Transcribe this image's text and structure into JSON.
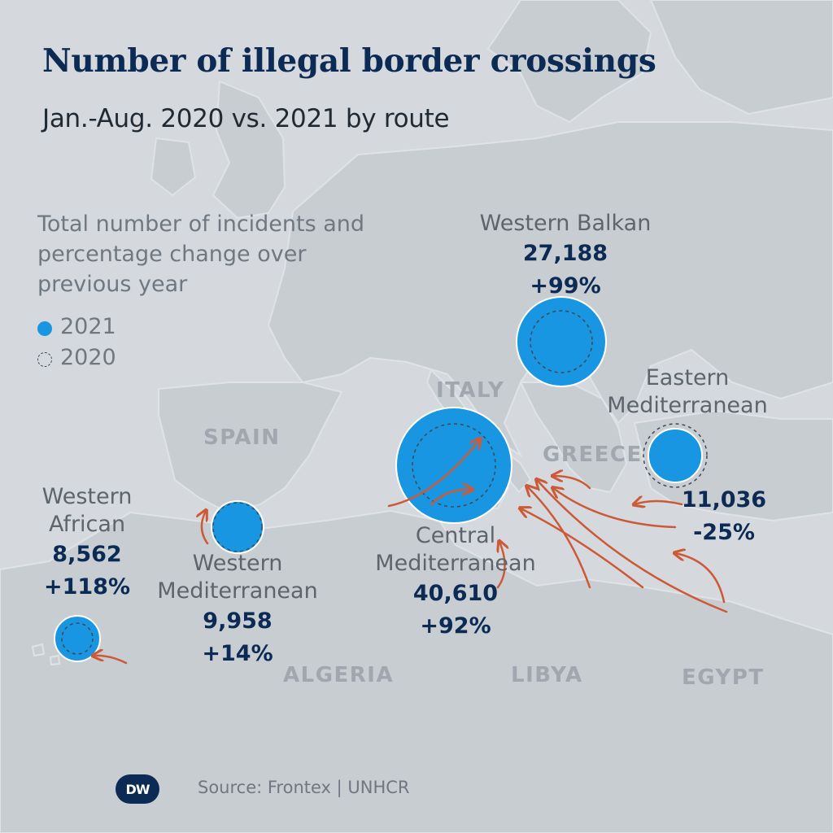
{
  "header": {
    "title": "Number of illegal border crossings",
    "subtitle": "Jan.-Aug. 2020 vs. 2021 by route"
  },
  "legend": {
    "description": "Total number of incidents and percentage change over previous year",
    "item_2021": "2021",
    "item_2020": "2020",
    "color_2021": "#1996e1",
    "style_2020": "dashed circle outline"
  },
  "countries": {
    "italy": "ITALY",
    "spain": "SPAIN",
    "greece": "GREECE",
    "algeria": "ALGERIA",
    "libya": "LIBYA",
    "egypt": "EGYPT"
  },
  "routes": {
    "western_balkan": {
      "name": "Western Balkan",
      "count_2021": 27188,
      "value": "27,188",
      "change": "+99%"
    },
    "eastern_mediterranean": {
      "name_line1": "Eastern",
      "name_line2": "Mediterranean",
      "count_2021": 11036,
      "value": "11,036",
      "change": "-25%"
    },
    "central_mediterranean": {
      "name_line1": "Central",
      "name_line2": "Mediterranean",
      "count_2021": 40610,
      "value": "40,610",
      "change": "+92%"
    },
    "western_mediterranean": {
      "name_line1": "Western",
      "name_line2": "Mediterranean",
      "count_2021": 9958,
      "value": "9,958",
      "change": "+14%"
    },
    "western_african": {
      "name_line1": "Western",
      "name_line2": "African",
      "count_2021": 8562,
      "value": "8,562",
      "change": "+118%"
    }
  },
  "colors": {
    "bubble": "#1996e1",
    "arrow": "#cc5a37",
    "land": "#c8cdd2",
    "sea": "#d5d9de",
    "title": "#0c2b54"
  },
  "footer": {
    "logo": "DW",
    "source": "Source: Frontex | UNHCR"
  }
}
